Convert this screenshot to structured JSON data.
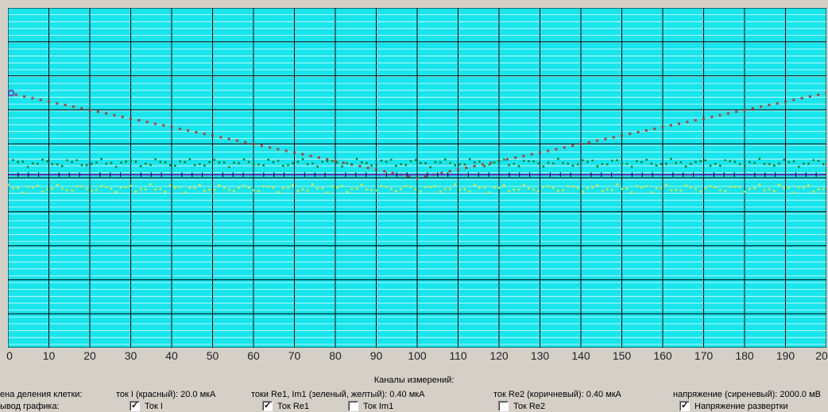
{
  "plot": {
    "colors": {
      "background": "#19e5ec",
      "major_grid": "#000000",
      "minor_grid": "#ffffff",
      "current_I": "#c0392b",
      "re1": "#1f7a1f",
      "im1": "#e6e62e",
      "re2": "#8b4513",
      "voltage": "#6a2dbf"
    },
    "x_ticks": [
      "0",
      "10",
      "20",
      "30",
      "40",
      "50",
      "60",
      "70",
      "80",
      "90",
      "100",
      "110",
      "120",
      "130",
      "140",
      "150",
      "160",
      "170",
      "180",
      "190",
      "20"
    ]
  },
  "chart_data": {
    "type": "scatter",
    "x_range": [
      0,
      200
    ],
    "series": [
      {
        "name": "ток I (красный)",
        "shape": "V",
        "start": 96,
        "min_at_x": 100,
        "min_value": -4
      },
      {
        "name": "ток Re1 (зеленый)",
        "offset": 14
      },
      {
        "name": "ток Im1 (желтый)",
        "offset": -16
      },
      {
        "name": "напряжение (сиреневый)",
        "offset": 0
      }
    ]
  },
  "panel": {
    "title": "Каналы измерений:",
    "grid_price_label": "ена деления клетки:",
    "output_label": "ывод графика:",
    "current_scale": "ток I (красный): 20.0 мкА",
    "re1im1_scale": "токи Re1, Im1  (зеленый, желтый): 0.40 мкА",
    "re2_scale": "ток Re2 (коричневый): 0.40 мкА",
    "voltage_scale": "напряжение  (сиреневый): 2000.0 мВ",
    "checkboxes": {
      "tok_i": {
        "label": "Ток I",
        "checked": "✓"
      },
      "tok_re1": {
        "label": "Ток Re1",
        "checked": "✓"
      },
      "tok_im1": {
        "label": "Ток Im1",
        "checked": ""
      },
      "tok_re2": {
        "label": "Ток Re2",
        "checked": ""
      },
      "voltage": {
        "label": "Напряжение развертки",
        "checked": "✓"
      }
    }
  }
}
